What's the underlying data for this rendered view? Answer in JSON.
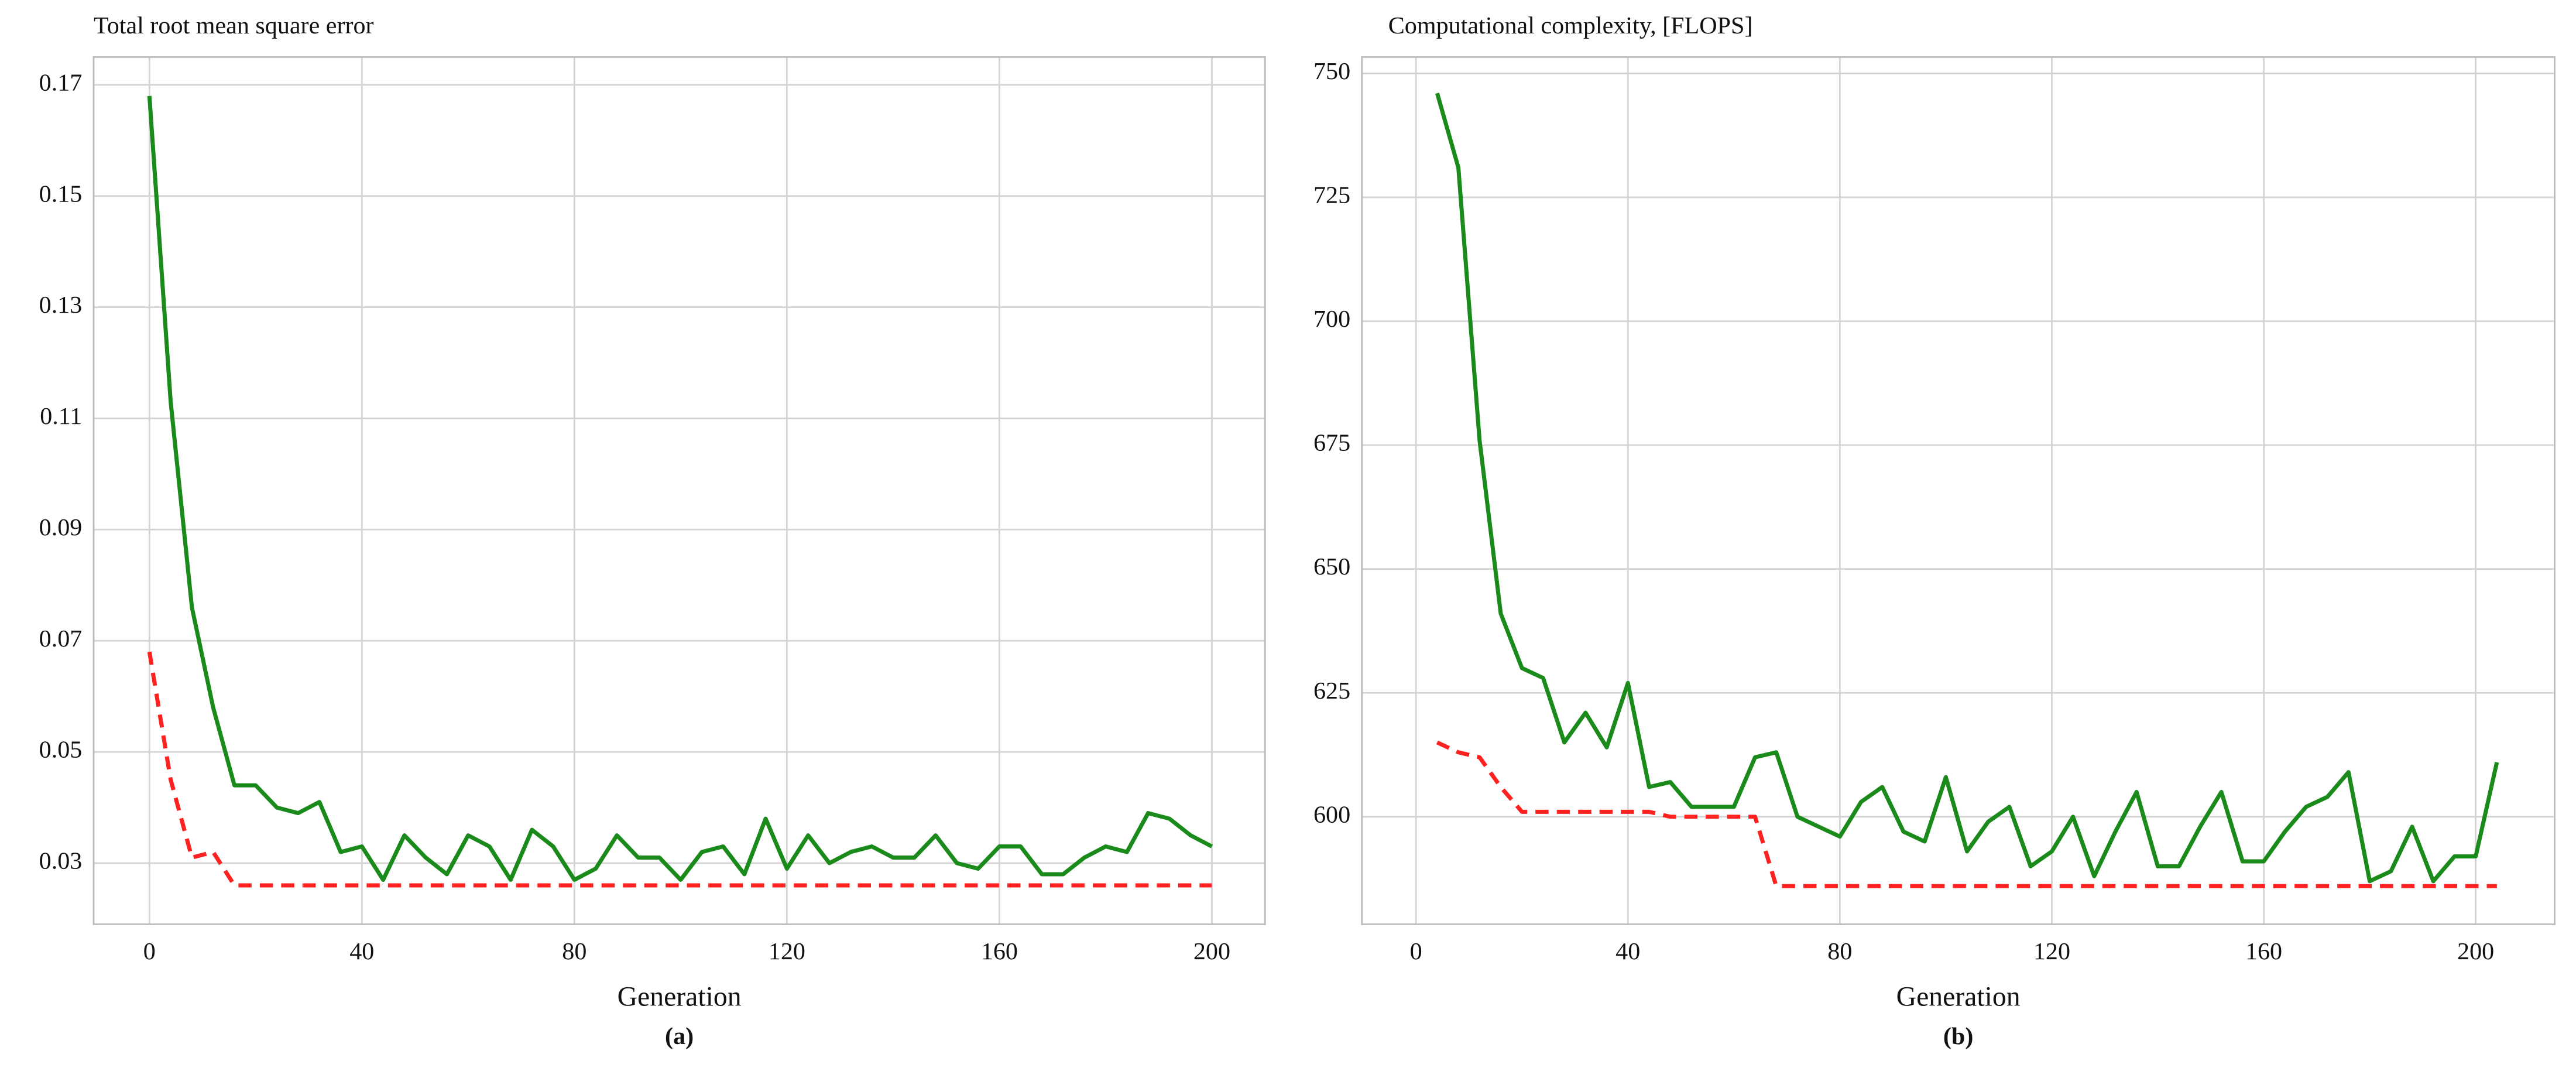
{
  "chart_data": [
    {
      "type": "line",
      "title": "Total root mean square error",
      "xlabel": "Generation",
      "caption": "(a)",
      "x": [
        0,
        4,
        8,
        12,
        16,
        20,
        24,
        28,
        32,
        36,
        40,
        44,
        48,
        52,
        56,
        60,
        64,
        68,
        72,
        76,
        80,
        84,
        88,
        92,
        96,
        100,
        104,
        108,
        112,
        116,
        120,
        124,
        128,
        132,
        136,
        140,
        144,
        148,
        152,
        156,
        160,
        164,
        168,
        172,
        176,
        180,
        184,
        188,
        192,
        196,
        200
      ],
      "series": [
        {
          "color": "#1a8a1a",
          "style": "solid",
          "values": [
            0.168,
            0.113,
            0.076,
            0.058,
            0.044,
            0.044,
            0.04,
            0.039,
            0.041,
            0.032,
            0.033,
            0.027,
            0.035,
            0.031,
            0.028,
            0.035,
            0.033,
            0.027,
            0.036,
            0.033,
            0.027,
            0.029,
            0.035,
            0.031,
            0.031,
            0.027,
            0.032,
            0.033,
            0.028,
            0.038,
            0.029,
            0.035,
            0.03,
            0.032,
            0.033,
            0.031,
            0.031,
            0.035,
            0.03,
            0.029,
            0.033,
            0.033,
            0.028,
            0.028,
            0.031,
            0.033,
            0.032,
            0.039,
            0.038,
            0.035,
            0.033
          ]
        },
        {
          "color": "#ff2020",
          "style": "dashed",
          "values": [
            0.068,
            0.045,
            0.031,
            0.032,
            0.026,
            0.026,
            0.026,
            0.026,
            0.026,
            0.026,
            0.026,
            0.026,
            0.026,
            0.026,
            0.026,
            0.026,
            0.026,
            0.026,
            0.026,
            0.026,
            0.026,
            0.026,
            0.026,
            0.026,
            0.026,
            0.026,
            0.026,
            0.026,
            0.026,
            0.026,
            0.026,
            0.026,
            0.026,
            0.026,
            0.026,
            0.026,
            0.026,
            0.026,
            0.026,
            0.026,
            0.026,
            0.026,
            0.026,
            0.026,
            0.026,
            0.026,
            0.026,
            0.026,
            0.026,
            0.026,
            0.026
          ]
        }
      ],
      "xlim": [
        -10.5,
        210
      ],
      "xticks": [
        0,
        40,
        80,
        120,
        160,
        200
      ],
      "ylim": [
        0.019,
        0.175
      ],
      "yticks": [
        {
          "value": 0.03,
          "label": "0.03"
        },
        {
          "value": 0.05,
          "label": "0.05"
        },
        {
          "value": 0.07,
          "label": "0.07"
        },
        {
          "value": 0.09,
          "label": "0.09"
        },
        {
          "value": 0.11,
          "label": "0.11"
        },
        {
          "value": 0.13,
          "label": "0.13"
        },
        {
          "value": 0.15,
          "label": "0.15"
        },
        {
          "value": 0.17,
          "label": "0.17"
        }
      ],
      "grid": true
    },
    {
      "type": "line",
      "title": "Computational complexity, [FLOPS]",
      "xlabel": "Generation",
      "caption": "(b)",
      "x": [
        4,
        8,
        12,
        16,
        20,
        24,
        28,
        32,
        36,
        40,
        44,
        48,
        52,
        56,
        60,
        64,
        68,
        72,
        76,
        80,
        84,
        88,
        92,
        96,
        100,
        104,
        108,
        112,
        116,
        120,
        124,
        128,
        132,
        136,
        140,
        144,
        148,
        152,
        156,
        160,
        164,
        168,
        172,
        176,
        180,
        184,
        188,
        192,
        196,
        200,
        204
      ],
      "series": [
        {
          "color": "#1a8a1a",
          "style": "solid",
          "values": [
            746,
            731,
            676,
            641,
            630,
            628,
            615,
            621,
            614,
            627,
            606,
            607,
            602,
            602,
            602,
            612,
            613,
            600,
            598,
            596,
            603,
            606,
            597,
            595,
            608,
            593,
            599,
            602,
            590,
            593,
            600,
            588,
            597,
            605,
            590,
            590,
            598,
            605,
            591,
            591,
            597,
            602,
            604,
            609,
            587,
            589,
            598,
            587,
            592,
            592,
            611
          ]
        },
        {
          "color": "#ff2020",
          "style": "dashed",
          "values": [
            615,
            613,
            612,
            606,
            601,
            601,
            601,
            601,
            601,
            601,
            601,
            600,
            600,
            600,
            600,
            600,
            586,
            586,
            586,
            586,
            586,
            586,
            586,
            586,
            586,
            586,
            586,
            586,
            586,
            586,
            586,
            586,
            586,
            586,
            586,
            586,
            586,
            586,
            586,
            586,
            586,
            586,
            586,
            586,
            586,
            586,
            586,
            586,
            586,
            586,
            586
          ]
        }
      ],
      "xlim": [
        -10.2,
        214.9
      ],
      "xticks": [
        0,
        40,
        80,
        120,
        160,
        200
      ],
      "ylim": [
        578.3,
        753.3
      ],
      "yticks": [
        600,
        625,
        650,
        675,
        700,
        725,
        750
      ],
      "grid": true
    }
  ]
}
